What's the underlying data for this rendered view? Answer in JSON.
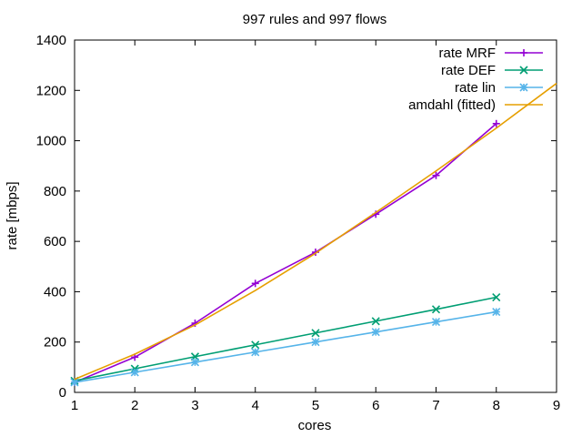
{
  "chart_data": {
    "type": "line",
    "title": "997 rules and 997 flows",
    "xlabel": "cores",
    "ylabel": "rate [mbps]",
    "xlim": [
      1,
      9
    ],
    "ylim": [
      0,
      1400
    ],
    "xticks": [
      "1",
      "2",
      "3",
      "4",
      "5",
      "6",
      "7",
      "8",
      "9"
    ],
    "yticks": [
      "0",
      "200",
      "400",
      "600",
      "800",
      "1000",
      "1200",
      "1400"
    ],
    "legend_position": "top-right",
    "grid": false,
    "series": [
      {
        "name": "rate MRF",
        "color": "#9400d3",
        "marker": "plus",
        "x": [
          1,
          2,
          3,
          4,
          5,
          6,
          7,
          8
        ],
        "y": [
          40,
          140,
          275,
          433,
          557,
          708,
          862,
          1068
        ]
      },
      {
        "name": "rate DEF",
        "color": "#009e73",
        "marker": "cross",
        "x": [
          1,
          2,
          3,
          4,
          5,
          6,
          7,
          8
        ],
        "y": [
          46,
          94,
          142,
          189,
          236,
          283,
          330,
          378
        ]
      },
      {
        "name": "rate lin",
        "color": "#56b4e9",
        "marker": "star",
        "x": [
          1,
          2,
          3,
          4,
          5,
          6,
          7,
          8
        ],
        "y": [
          40,
          80,
          120,
          160,
          200,
          240,
          280,
          320
        ]
      },
      {
        "name": "amdahl (fitted)",
        "color": "#e69f00",
        "marker": "none",
        "x": [
          1,
          2,
          3,
          4,
          5,
          6,
          7,
          8,
          9
        ],
        "y": [
          52,
          152,
          268,
          405,
          553,
          715,
          880,
          1050,
          1228
        ]
      }
    ]
  }
}
